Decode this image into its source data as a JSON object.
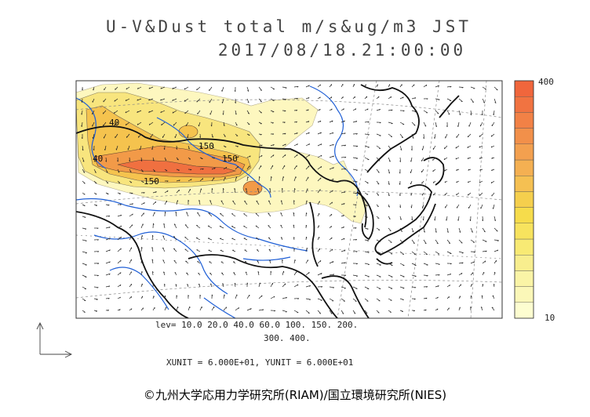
{
  "title": {
    "line1": "U-V&Dust total m/s&ug/m3 JST",
    "line2": "2017/08/18.21:00:00"
  },
  "legend": {
    "max_label": "400",
    "min_label": "10",
    "colors": [
      "#fdfdd0",
      "#fbf7b8",
      "#faf4a6",
      "#f8ee8e",
      "#f8ea74",
      "#f7e35e",
      "#f6dc4b",
      "#f5cf4d",
      "#f5c052",
      "#f4b052",
      "#f3a04f",
      "#f2904a",
      "#f28146",
      "#f17341",
      "#f0663c"
    ]
  },
  "contour_levels": {
    "line1": "lev= 10.0 20.0 40.0 60.0 100. 150. 200.",
    "line2": "300. 400."
  },
  "contour_labels": [
    "40",
    "40",
    "150",
    "150",
    "150"
  ],
  "units_text": "XUNIT = 6.000E+01, YUNIT = 6.000E+01",
  "credit": "©九州大学応用力学研究所(RIAM)/国立環境研究所(NIES)"
}
